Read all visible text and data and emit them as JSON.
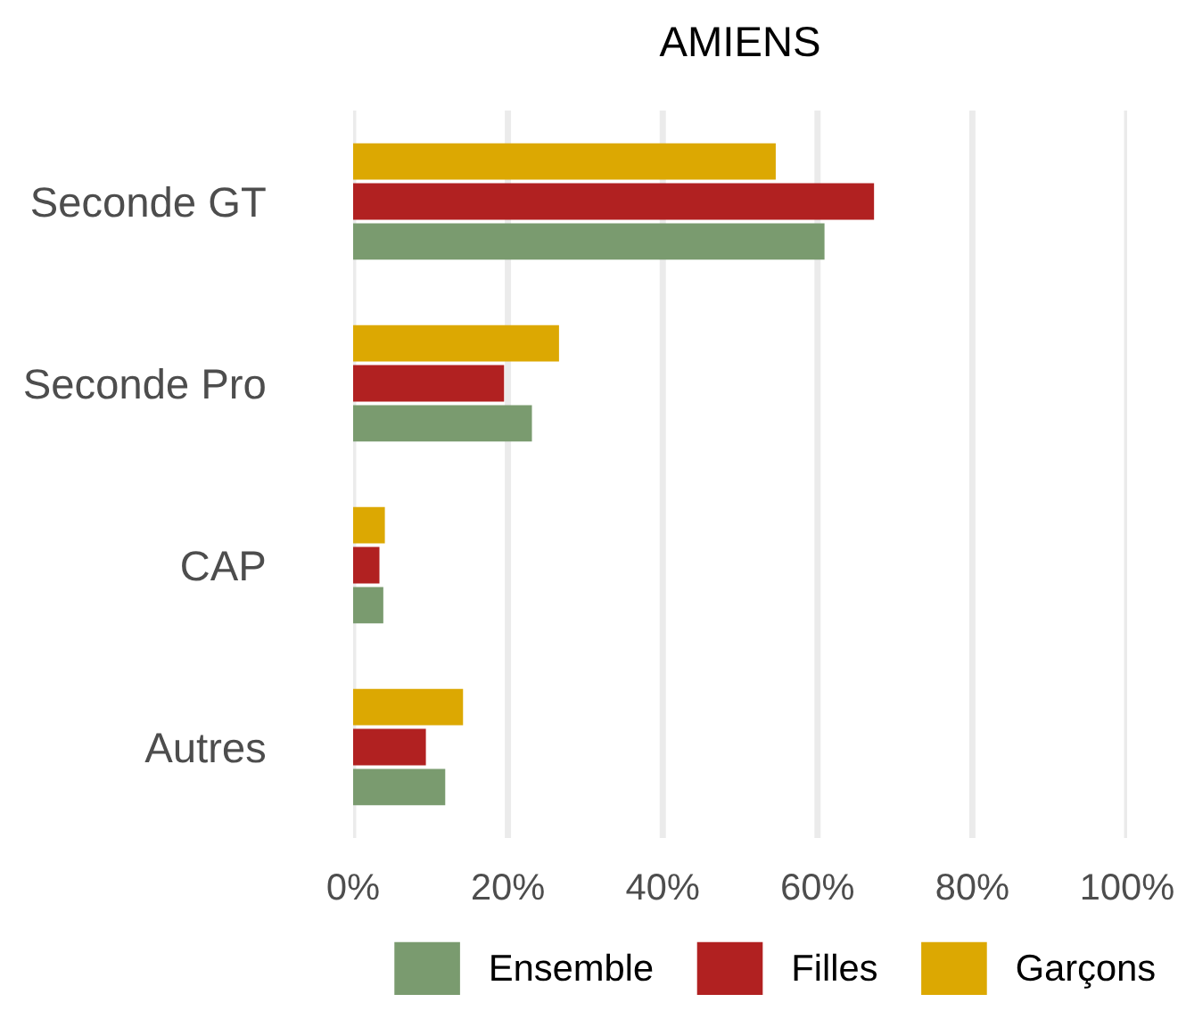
{
  "chart_data": {
    "type": "bar",
    "orientation": "horizontal",
    "title": "AMIENS",
    "categories": [
      "Seconde GT",
      "Seconde Pro",
      "CAP",
      "Autres"
    ],
    "series": [
      {
        "name": "Ensemble",
        "color": "#7a9b6f",
        "values": [
          60.9,
          23.1,
          3.9,
          11.9
        ]
      },
      {
        "name": "Filles",
        "color": "#b12121",
        "values": [
          67.3,
          19.5,
          3.4,
          9.4
        ]
      },
      {
        "name": "Garçons",
        "color": "#dca802",
        "values": [
          54.6,
          26.6,
          4.1,
          14.2
        ]
      }
    ],
    "xlim": [
      0,
      100
    ],
    "xticks": [
      {
        "value": 0,
        "label": "0%"
      },
      {
        "value": 20,
        "label": "20%"
      },
      {
        "value": 40,
        "label": "40%"
      },
      {
        "value": 60,
        "label": "60%"
      },
      {
        "value": 80,
        "label": "80%"
      },
      {
        "value": 100,
        "label": "100%"
      }
    ],
    "grid": "x",
    "legend": "bottom"
  }
}
